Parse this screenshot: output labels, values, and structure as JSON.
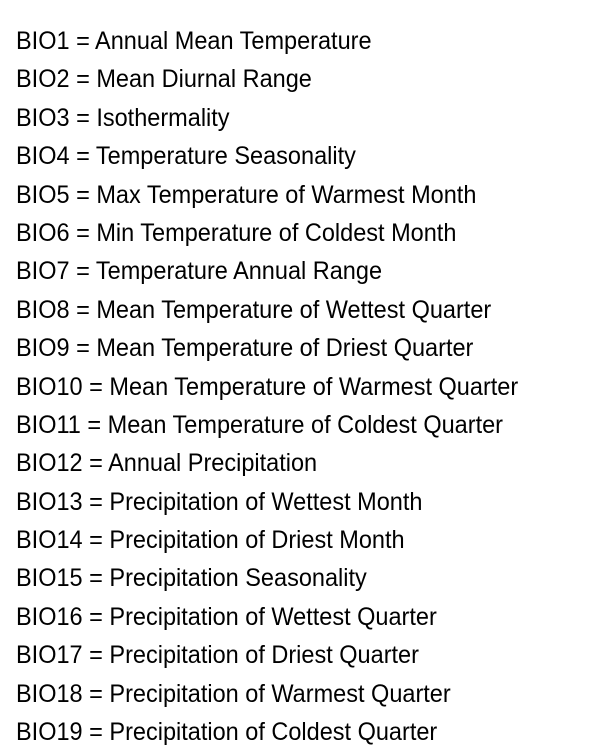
{
  "lines": [
    "BIO1 = Annual Mean Temperature",
    "BIO2 = Mean Diurnal Range",
    "BIO3 = Isothermality",
    "BIO4 = Temperature Seasonality",
    "BIO5 = Max Temperature of Warmest Month",
    "BIO6 = Min Temperature of Coldest Month",
    "BIO7 = Temperature Annual Range",
    "BIO8 = Mean Temperature of Wettest Quarter",
    "BIO9 = Mean Temperature of Driest Quarter",
    "BIO10 = Mean Temperature of Warmest Quarter",
    "BIO11 = Mean Temperature of Coldest Quarter",
    "BIO12 = Annual Precipitation",
    "BIO13 = Precipitation of Wettest Month",
    "BIO14 = Precipitation of Driest Month",
    "BIO15 = Precipitation Seasonality",
    "BIO16 = Precipitation of Wettest Quarter",
    "BIO17 = Precipitation of Driest Quarter",
    "BIO18 = Precipitation of Warmest Quarter",
    "BIO19 = Precipitation of Coldest Quarter"
  ]
}
